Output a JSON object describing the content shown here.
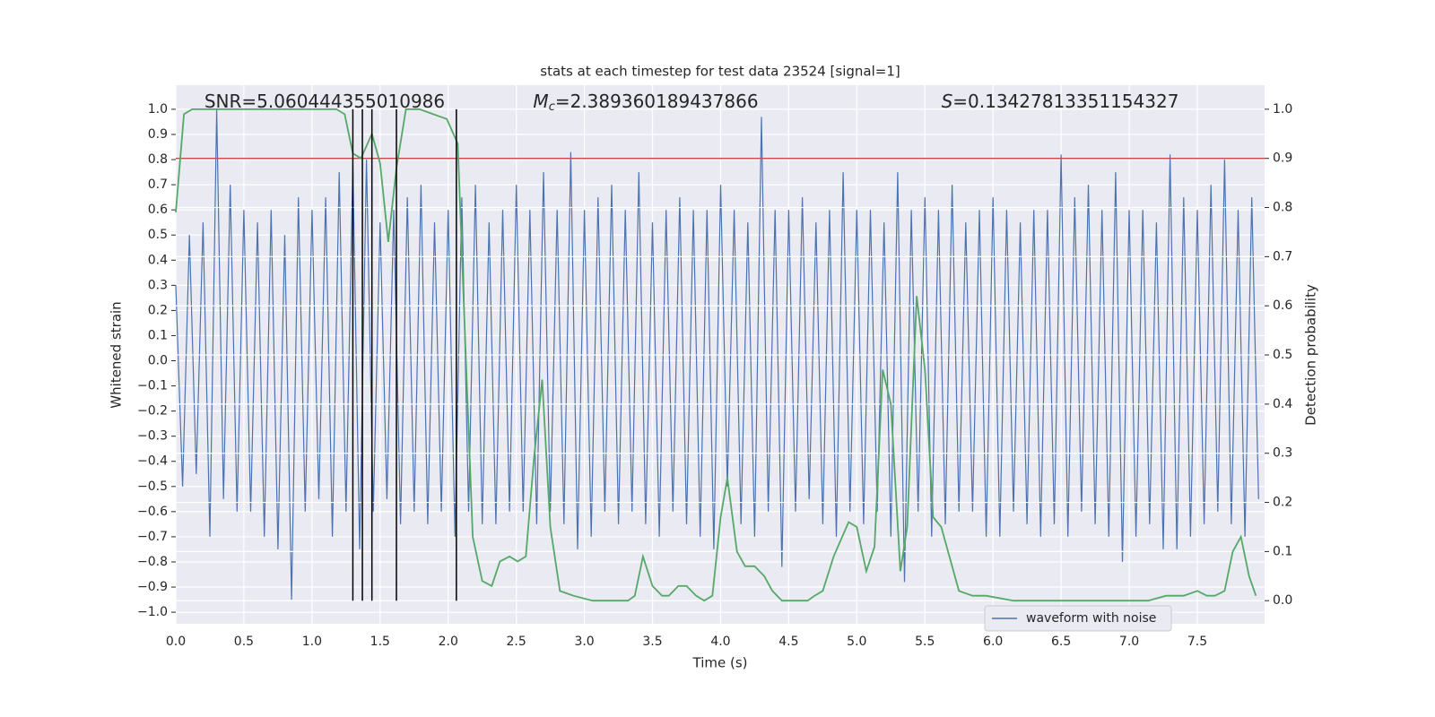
{
  "chart_data": {
    "type": "line",
    "title": "stats at each timestep for test data 23524 [signal=1]",
    "annotations": [
      {
        "text": "SNR=5.060444355010986"
      },
      {
        "symbol": "M",
        "subscript": "c",
        "text": "=2.389360189437866"
      },
      {
        "symbol": "S",
        "text": "=0.13427813351154327"
      }
    ],
    "x_label": "Time (s)",
    "y_label": "Whitened strain",
    "y2_label": "Detection probability",
    "xlim": [
      0,
      7.994
    ],
    "ylim": [
      -1.046,
      1.096
    ],
    "y2lim": [
      -0.047,
      1.049
    ],
    "xticks": [
      {
        "value": 0,
        "label": "0.0"
      },
      {
        "value": 0.5,
        "label": "0.5"
      },
      {
        "value": 1,
        "label": "1.0"
      },
      {
        "value": 1.5,
        "label": "1.5"
      },
      {
        "value": 2,
        "label": "2.0"
      },
      {
        "value": 2.5,
        "label": "2.5"
      },
      {
        "value": 3,
        "label": "3.0"
      },
      {
        "value": 3.5,
        "label": "3.5"
      },
      {
        "value": 4,
        "label": "4.0"
      },
      {
        "value": 4.5,
        "label": "4.5"
      },
      {
        "value": 5,
        "label": "5.0"
      },
      {
        "value": 5.5,
        "label": "5.5"
      },
      {
        "value": 6,
        "label": "6.0"
      },
      {
        "value": 6.5,
        "label": "6.5"
      },
      {
        "value": 7,
        "label": "7.0"
      },
      {
        "value": 7.5,
        "label": "7.5"
      }
    ],
    "yticks": [
      {
        "value": -1,
        "label": "−1.0"
      },
      {
        "value": -0.9,
        "label": "−0.9"
      },
      {
        "value": -0.8,
        "label": "−0.8"
      },
      {
        "value": -0.7,
        "label": "−0.7"
      },
      {
        "value": -0.6,
        "label": "−0.6"
      },
      {
        "value": -0.5,
        "label": "−0.5"
      },
      {
        "value": -0.4,
        "label": "−0.4"
      },
      {
        "value": -0.3,
        "label": "−0.3"
      },
      {
        "value": -0.2,
        "label": "−0.2"
      },
      {
        "value": -0.1,
        "label": "−0.1"
      },
      {
        "value": 0,
        "label": "0.0"
      },
      {
        "value": 0.1,
        "label": "0.1"
      },
      {
        "value": 0.2,
        "label": "0.2"
      },
      {
        "value": 0.3,
        "label": "0.3"
      },
      {
        "value": 0.4,
        "label": "0.4"
      },
      {
        "value": 0.5,
        "label": "0.5"
      },
      {
        "value": 0.6,
        "label": "0.6"
      },
      {
        "value": 0.7,
        "label": "0.7"
      },
      {
        "value": 0.8,
        "label": "0.8"
      },
      {
        "value": 0.9,
        "label": "0.9"
      },
      {
        "value": 1,
        "label": "1.0"
      }
    ],
    "y2ticks": [
      {
        "value": 0,
        "label": "0.0"
      },
      {
        "value": 0.1,
        "label": "0.1"
      },
      {
        "value": 0.2,
        "label": "0.2"
      },
      {
        "value": 0.3,
        "label": "0.3"
      },
      {
        "value": 0.4,
        "label": "0.4"
      },
      {
        "value": 0.5,
        "label": "0.5"
      },
      {
        "value": 0.6,
        "label": "0.6"
      },
      {
        "value": 0.7,
        "label": "0.7"
      },
      {
        "value": 0.8,
        "label": "0.8"
      },
      {
        "value": 0.9,
        "label": "0.9"
      },
      {
        "value": 1,
        "label": "1.0"
      }
    ],
    "grid": true,
    "legend": "lower right",
    "threshold": 0.9,
    "threshold_color": "#c44e52",
    "detections": [
      1.3,
      1.37,
      1.44,
      1.62,
      2.06
    ],
    "detection_color": "#000000",
    "series": [
      {
        "name": "waveform with noise",
        "color": "#4c72b0",
        "x": [
          0,
          0.05,
          0.1,
          0.15,
          0.2,
          0.25,
          0.3,
          0.35,
          0.4,
          0.45,
          0.5,
          0.55,
          0.6,
          0.65,
          0.7,
          0.75,
          0.8,
          0.85,
          0.9,
          0.95,
          1,
          1.05,
          1.1,
          1.15,
          1.2,
          1.25,
          1.3,
          1.35,
          1.4,
          1.45,
          1.5,
          1.55,
          1.6,
          1.65,
          1.7,
          1.75,
          1.8,
          1.85,
          1.9,
          1.95,
          2,
          2.05,
          2.1,
          2.15,
          2.2,
          2.25,
          2.3,
          2.35,
          2.4,
          2.45,
          2.5,
          2.55,
          2.6,
          2.65,
          2.7,
          2.75,
          2.8,
          2.85,
          2.9,
          2.95,
          3,
          3.05,
          3.1,
          3.15,
          3.2,
          3.25,
          3.3,
          3.35,
          3.4,
          3.45,
          3.5,
          3.55,
          3.6,
          3.65,
          3.7,
          3.75,
          3.8,
          3.85,
          3.9,
          3.95,
          4,
          4.05,
          4.1,
          4.15,
          4.2,
          4.25,
          4.3,
          4.35,
          4.4,
          4.45,
          4.5,
          4.55,
          4.6,
          4.65,
          4.7,
          4.75,
          4.8,
          4.85,
          4.9,
          4.95,
          5,
          5.05,
          5.1,
          5.15,
          5.2,
          5.25,
          5.3,
          5.35,
          5.4,
          5.45,
          5.5,
          5.55,
          5.6,
          5.65,
          5.7,
          5.75,
          5.8,
          5.85,
          5.9,
          5.95,
          6,
          6.05,
          6.1,
          6.15,
          6.2,
          6.25,
          6.3,
          6.35,
          6.4,
          6.45,
          6.5,
          6.55,
          6.6,
          6.65,
          6.7,
          6.75,
          6.8,
          6.85,
          6.9,
          6.95,
          7,
          7.05,
          7.1,
          7.15,
          7.2,
          7.25,
          7.3,
          7.35,
          7.4,
          7.45,
          7.5,
          7.55,
          7.6,
          7.65,
          7.7,
          7.75,
          7.8,
          7.85,
          7.9,
          7.95
        ],
        "values": [
          0.3,
          -0.5,
          0.5,
          -0.45,
          0.55,
          -0.7,
          1.0,
          -0.55,
          0.7,
          -0.6,
          0.6,
          -0.6,
          0.55,
          -0.7,
          0.6,
          -0.75,
          0.5,
          -0.95,
          0.65,
          -0.6,
          0.6,
          -0.55,
          0.65,
          -0.7,
          0.75,
          -0.6,
          0.78,
          -0.75,
          0.8,
          -0.6,
          0.55,
          -0.55,
          0.6,
          -0.65,
          0.65,
          -0.6,
          0.7,
          -0.65,
          0.55,
          -0.6,
          0.6,
          -0.7,
          0.65,
          -0.6,
          0.7,
          -0.65,
          0.55,
          -0.65,
          0.6,
          -0.6,
          0.7,
          -0.6,
          0.6,
          -0.65,
          0.75,
          -0.6,
          0.6,
          -0.65,
          0.83,
          -0.75,
          0.6,
          -0.7,
          0.65,
          -0.6,
          0.7,
          -0.65,
          0.6,
          -0.6,
          0.75,
          -0.65,
          0.55,
          -0.7,
          0.6,
          -0.6,
          0.65,
          -0.65,
          0.6,
          -0.7,
          0.6,
          -0.75,
          0.7,
          -0.5,
          0.6,
          -0.65,
          0.55,
          -0.7,
          0.97,
          -0.6,
          0.6,
          -0.82,
          0.6,
          -0.6,
          0.65,
          -0.55,
          0.55,
          -0.65,
          0.6,
          -0.7,
          0.75,
          -0.6,
          0.6,
          -0.65,
          0.6,
          -0.6,
          0.55,
          -0.7,
          0.75,
          -0.88,
          0.6,
          -0.6,
          0.65,
          -0.7,
          0.6,
          -0.65,
          0.7,
          -0.6,
          0.55,
          -0.6,
          0.6,
          -0.7,
          0.65,
          -0.7,
          0.6,
          -0.6,
          0.55,
          -0.65,
          0.6,
          -0.7,
          0.6,
          -0.65,
          0.82,
          -0.7,
          0.65,
          -0.6,
          0.7,
          -0.65,
          0.6,
          -0.7,
          0.75,
          -0.8,
          0.6,
          -0.7,
          0.6,
          -0.65,
          0.55,
          -0.75,
          0.82,
          -0.75,
          0.65,
          -0.7,
          0.6,
          -0.65,
          0.7,
          -0.6,
          0.8,
          -0.65,
          0.6,
          -0.7,
          0.65,
          -0.55
        ]
      },
      {
        "color": "#55a868",
        "axis": "y2",
        "x": [
          0,
          0.06,
          0.12,
          1.18,
          1.24,
          1.3,
          1.36,
          1.44,
          1.5,
          1.56,
          1.62,
          1.69,
          1.79,
          1.89,
          1.99,
          2.07,
          2.13,
          2.18,
          2.25,
          2.32,
          2.38,
          2.45,
          2.51,
          2.57,
          2.63,
          2.69,
          2.75,
          2.82,
          2.92,
          3.06,
          3.32,
          3.37,
          3.43,
          3.5,
          3.57,
          3.62,
          3.69,
          3.75,
          3.82,
          3.88,
          3.94,
          4.0,
          4.05,
          4.12,
          4.18,
          4.25,
          4.32,
          4.38,
          4.45,
          4.64,
          4.69,
          4.75,
          4.83,
          4.94,
          5.0,
          5.07,
          5.13,
          5.19,
          5.25,
          5.32,
          5.37,
          5.44,
          5.5,
          5.56,
          5.62,
          5.69,
          5.75,
          5.85,
          5.95,
          6.15,
          6.48,
          6.55,
          6.74,
          7.14,
          7.27,
          7.4,
          7.5,
          7.57,
          7.63,
          7.7,
          7.76,
          7.82,
          7.88,
          7.93
        ],
        "values": [
          0.79,
          0.99,
          1.0,
          1.0,
          0.99,
          0.91,
          0.9,
          0.95,
          0.89,
          0.73,
          0.88,
          1.0,
          1.0,
          0.99,
          0.98,
          0.93,
          0.49,
          0.13,
          0.04,
          0.03,
          0.08,
          0.09,
          0.08,
          0.09,
          0.29,
          0.45,
          0.15,
          0.02,
          0.01,
          0.0,
          0.0,
          0.01,
          0.09,
          0.03,
          0.01,
          0.01,
          0.03,
          0.03,
          0.01,
          0.0,
          0.01,
          0.17,
          0.25,
          0.1,
          0.07,
          0.07,
          0.05,
          0.02,
          0.0,
          0.0,
          0.01,
          0.02,
          0.09,
          0.16,
          0.15,
          0.06,
          0.11,
          0.47,
          0.4,
          0.06,
          0.15,
          0.62,
          0.47,
          0.17,
          0.15,
          0.08,
          0.02,
          0.01,
          0.01,
          0.0,
          0.0,
          0.0,
          0.0,
          0.0,
          0.01,
          0.01,
          0.02,
          0.01,
          0.01,
          0.02,
          0.1,
          0.13,
          0.05,
          0.01
        ]
      }
    ]
  }
}
